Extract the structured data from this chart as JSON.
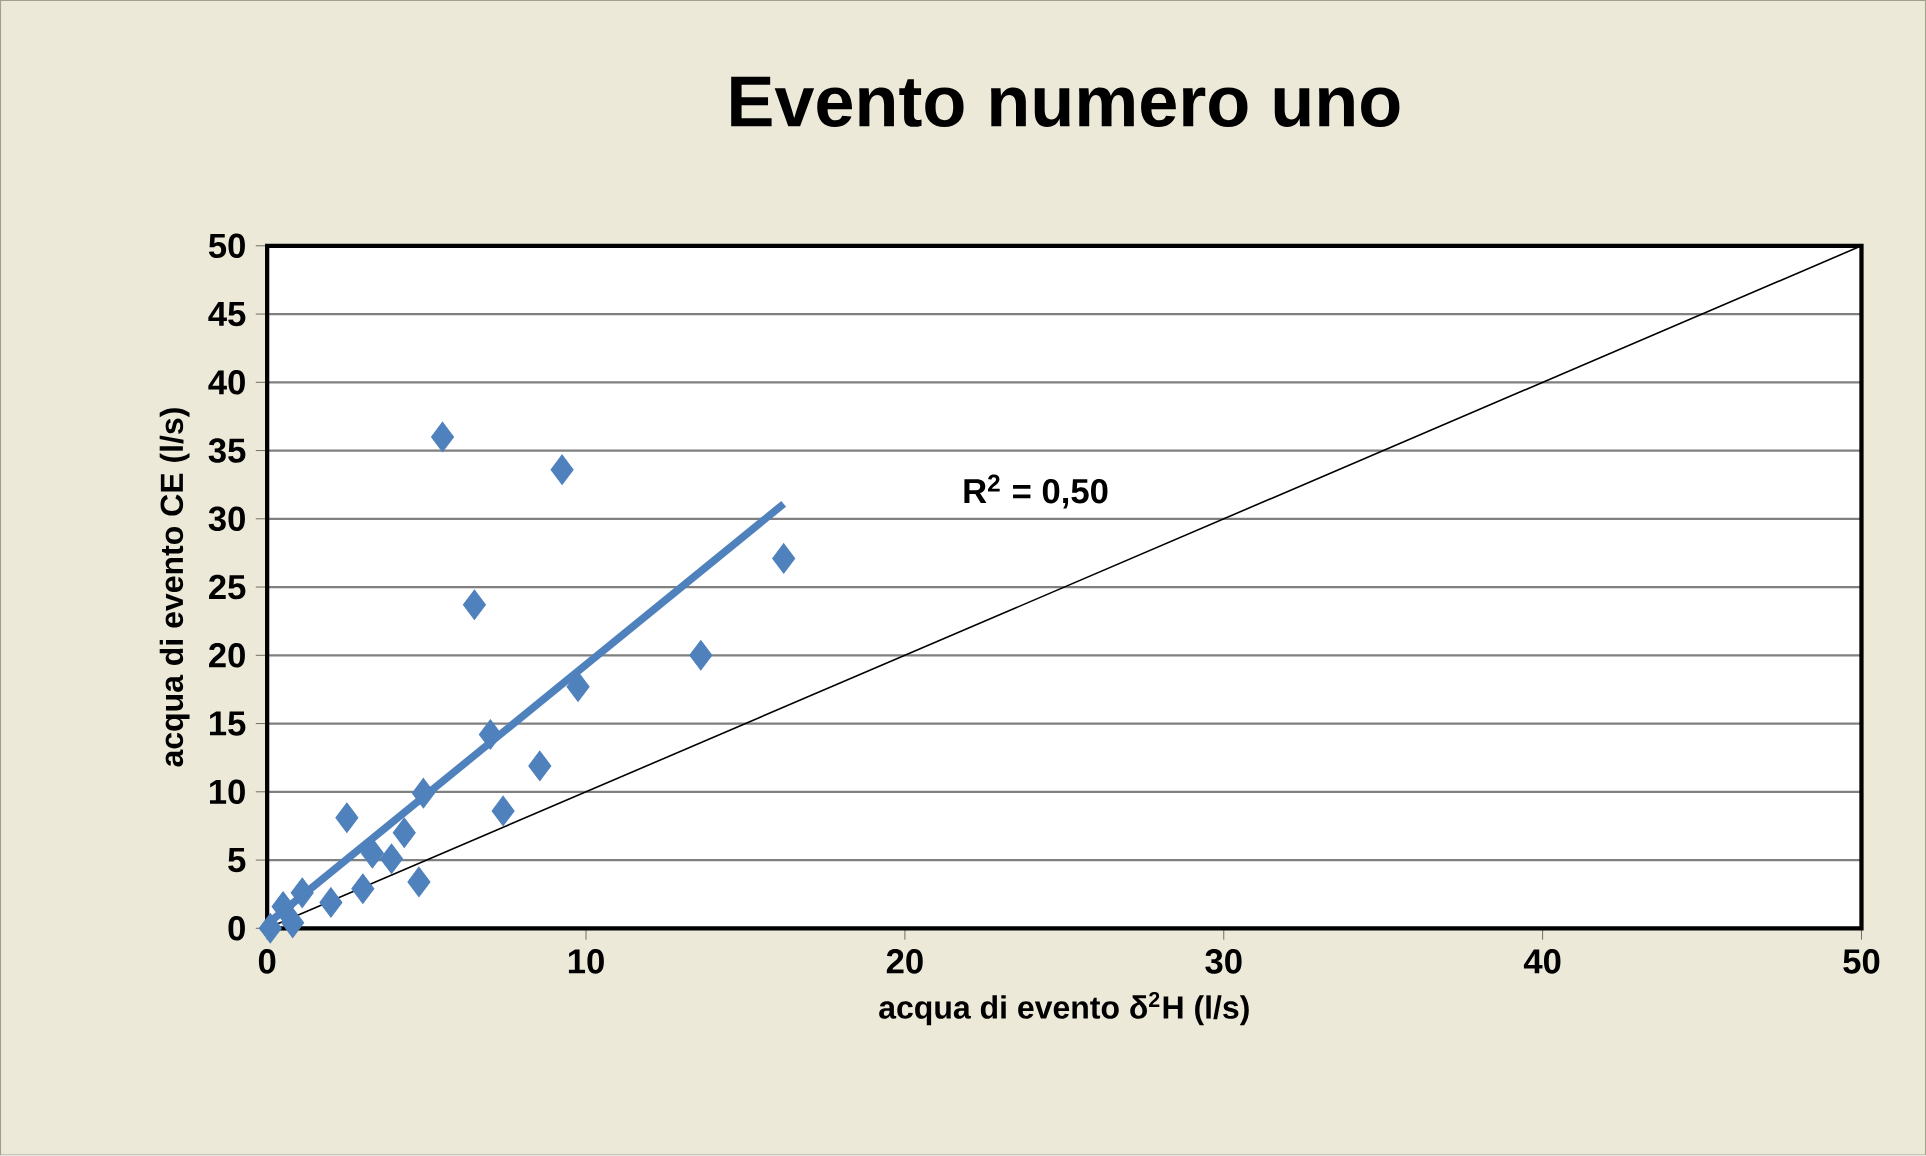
{
  "chart_data": {
    "type": "scatter",
    "title": "Evento numero uno",
    "xlabel": "acqua di evento δ$^{2}$H (l/s)",
    "ylabel": "acqua di evento CE (l/s)",
    "xlim": [
      0,
      50
    ],
    "ylim": [
      0,
      50
    ],
    "xticks": [
      0,
      10,
      20,
      30,
      40,
      50
    ],
    "yticks": [
      0,
      5,
      10,
      15,
      20,
      25,
      30,
      35,
      40,
      45,
      50
    ],
    "grid": "y",
    "marker": "diamond",
    "annotations": [
      "R$^{2}$ = 0,50"
    ],
    "series": [
      {
        "color": "#4f81bd",
        "x": [
          0.1,
          0.5,
          0.8,
          1.1,
          2.0,
          3.0,
          3.3,
          3.9,
          4.76,
          4.3,
          2.5,
          4.9,
          7.4,
          8.55,
          7.0,
          9.75,
          13.6,
          6.5,
          16.2,
          9.25,
          5.5
        ],
        "values": [
          0,
          1.6,
          0.4,
          2.6,
          1.9,
          2.9,
          5.5,
          5.1,
          3.4,
          7.0,
          8.1,
          9.9,
          8.6,
          11.9,
          14.2,
          17.7,
          20.0,
          23.7,
          27.1,
          33.6,
          36.0
        ]
      },
      {
        "type": "line",
        "color": "#4f81bd",
        "marker": "none",
        "x": [
          0.1,
          16.2
        ],
        "values": [
          0.5,
          31.1
        ]
      },
      {
        "type": "line",
        "color": "#000000",
        "marker": "none",
        "x": [
          0,
          50
        ],
        "values": [
          0,
          50
        ]
      }
    ]
  }
}
